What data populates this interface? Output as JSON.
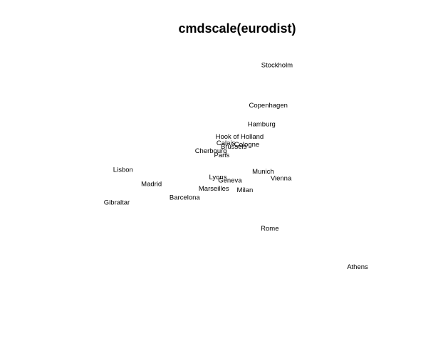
{
  "chart_data": {
    "type": "scatter",
    "title": "cmdscale(eurodist)",
    "labels": [
      "Athens",
      "Barcelona",
      "Brussels",
      "Calais",
      "Cherbourg",
      "Cologne",
      "Copenhagen",
      "Geneva",
      "Gibraltar",
      "Hamburg",
      "Hook of Holland",
      "Lisbon",
      "Lyons",
      "Madrid",
      "Marseilles",
      "Milan",
      "Munich",
      "Paris",
      "Rome",
      "Stockholm",
      "Vienna"
    ],
    "x": [
      2290,
      -825,
      59,
      -83,
      -352,
      294,
      682,
      -9,
      -2048,
      561,
      165,
      -1935,
      -226,
      -1423,
      -299,
      261,
      588,
      -157,
      709,
      839,
      911
    ],
    "y": [
      -1799,
      -547,
      367,
      430,
      291,
      405,
      1109,
      -240,
      -642,
      773,
      549,
      -49,
      -187,
      -306,
      -389,
      -417,
      -81,
      211,
      -1109,
      1837,
      -206
    ],
    "color": "#000000"
  }
}
